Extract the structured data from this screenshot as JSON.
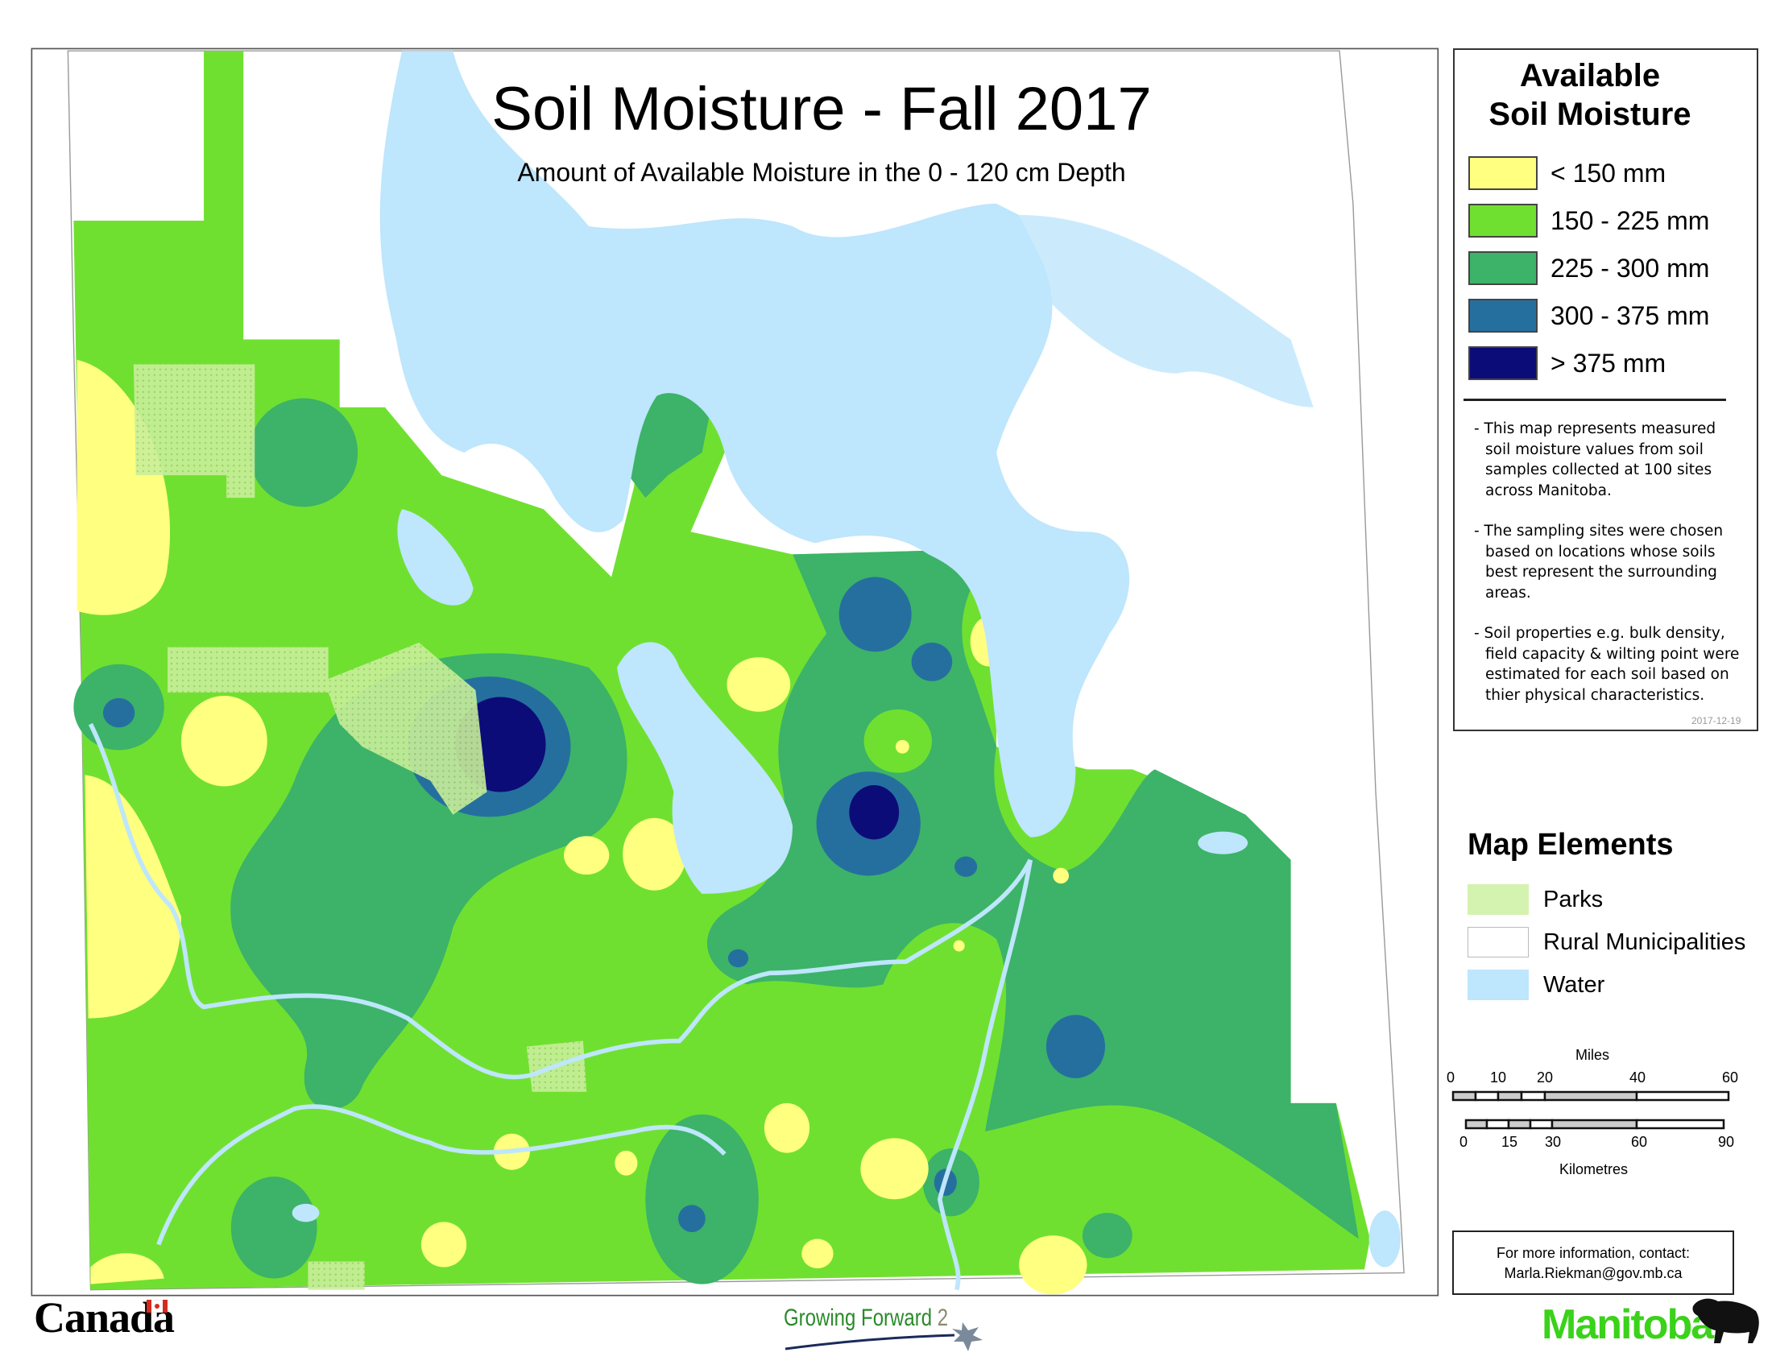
{
  "title": "Soil Moisture - Fall 2017",
  "subtitle": "Amount of Available Moisture in the 0 - 120 cm Depth",
  "legend": {
    "title_line1": "Available",
    "title_line2": "Soil Moisture",
    "items": [
      {
        "label": "< 150 mm",
        "color": "#ffff80"
      },
      {
        "label": "150 - 225 mm",
        "color": "#70e030"
      },
      {
        "label": "225 - 300 mm",
        "color": "#3cb368"
      },
      {
        "label": "300 - 375 mm",
        "color": "#256f9f"
      },
      {
        "label": "> 375 mm",
        "color": "#0c0c78"
      }
    ],
    "notes": [
      {
        "first": "- This map represents measured",
        "rest": [
          "soil moisture values from soil",
          "samples collected at 100 sites",
          "across Manitoba."
        ]
      },
      {
        "first": "- The sampling sites were chosen",
        "rest": [
          "based on locations whose soils",
          "best represent the surrounding",
          "areas."
        ]
      },
      {
        "first": "- Soil properties e.g. bulk density,",
        "rest": [
          "field capacity & wilting point were",
          "estimated for each soil based on",
          "thier physical characteristics."
        ]
      }
    ],
    "date": "2017-12-19"
  },
  "map_elements": {
    "title": "Map Elements",
    "items": [
      {
        "label": "Parks",
        "color": "#d4f2b0"
      },
      {
        "label": "Rural Municipalities",
        "color": "#ffffff"
      },
      {
        "label": "Water",
        "color": "#bee6fc"
      }
    ]
  },
  "scale": {
    "miles_label": "Miles",
    "miles_ticks": [
      "0",
      "10",
      "20",
      "40",
      "60"
    ],
    "km_label": "Kilometres",
    "km_ticks": [
      "0",
      "15",
      "30",
      "60",
      "90"
    ]
  },
  "contact": {
    "line1": "For more information, contact:",
    "line2": "Marla.Riekman@gov.mb.ca"
  },
  "logos": {
    "canada": "Canada",
    "growing_forward": "Growing Forward",
    "growing_forward_num": "2",
    "manitoba": "Manitoba"
  }
}
